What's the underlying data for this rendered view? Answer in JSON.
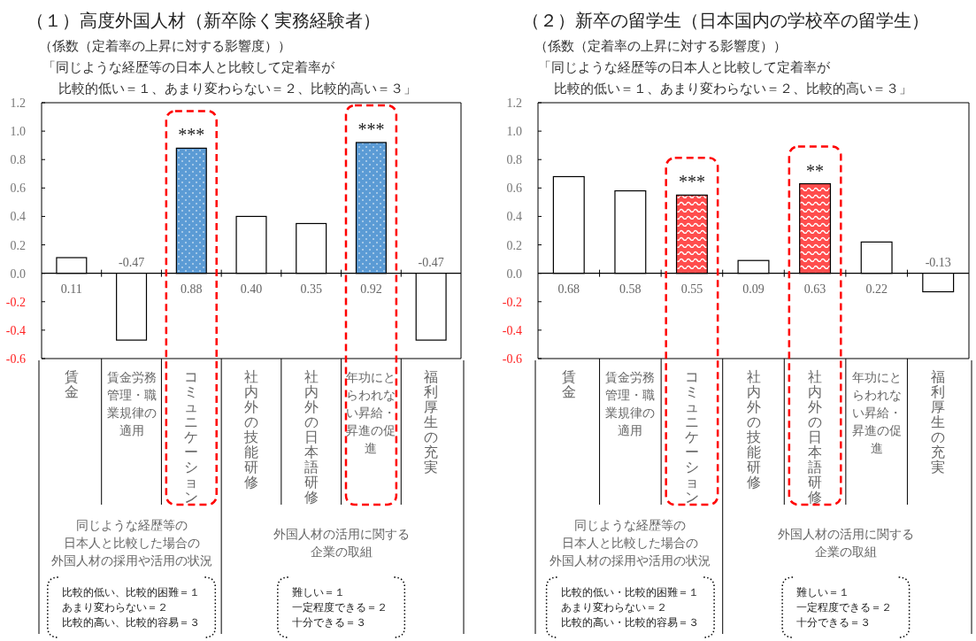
{
  "chart_data": [
    {
      "type": "bar",
      "title": "（１）高度外国人材（新卒除く実務経験者）",
      "ylabel": "（係数（定着率の上昇に対する影響度））",
      "subtitle": "「同じような経歴等の日本人と比較して定着率が",
      "categories": [
        "賃金",
        "賃金労務管理・職業規律の適用",
        "コミュニケーション",
        "社内外の技能研修",
        "社内外の日本語研修",
        "年功にとらわれない昇給・昇進の促進",
        "福利厚生の充実"
      ],
      "values": [
        0.11,
        -0.47,
        0.88,
        0.4,
        0.35,
        0.92,
        -0.47
      ],
      "value_labels": [
        "0.11",
        "-0.47",
        "0.88",
        "0.40",
        "0.35",
        "0.92",
        "-0.47"
      ],
      "colors": [
        "#ffffff",
        "#ffffff",
        "#5b9bd5",
        "#ffffff",
        "#ffffff",
        "#5b9bd5",
        "#ffffff"
      ],
      "ylim": [
        -0.6,
        1.2
      ],
      "yticks": [
        {
          "value": -0.6,
          "label": "-0.6"
        },
        {
          "value": -0.4,
          "label": "-0.4"
        },
        {
          "value": -0.2,
          "label": "-0.2"
        },
        {
          "value": 0,
          "label": "0.0"
        },
        0.2,
        0.4,
        0.6,
        0.8,
        {
          "value": 1.0,
          "label": "1.0"
        },
        1.2
      ],
      "annotations": [
        {
          "text": "***",
          "x": "コミュニケーション",
          "y": 0.88
        },
        {
          "text": "***",
          "x": "年功にとらわれない昇給・昇進の促進",
          "y": 0.92
        },
        "比較的低い＝１、あまり変わらない＝２、比較的高い＝３」",
        "同じような経歴等の",
        "日本人と比較した場合の",
        "外国人材の採用や活用の状況",
        "外国人材の活用に関する",
        "企業の取組",
        "比較的低い、比較的困難＝１",
        "あまり変わらない＝２",
        "比較的高い、比較的容易＝３",
        "難しい＝１",
        "一定程度できる＝２",
        "十分できる＝３"
      ]
    },
    {
      "type": "bar",
      "title": "（２）新卒の留学生（日本国内の学校卒の留学生）",
      "ylabel": "（係数（定着率の上昇に対する影響度））",
      "subtitle": "「同じような経歴等の日本人と比較して定着率が",
      "categories": [
        "賃金",
        "賃金労務管理・職業規律の適用",
        "コミュニケーション",
        "社内外の技能研修",
        "社内外の日本語研修",
        "年功にとらわれない昇給・昇進の促進",
        "福利厚生の充実"
      ],
      "values": [
        0.68,
        0.58,
        0.55,
        0.09,
        0.63,
        0.22,
        -0.13
      ],
      "value_labels": [
        "0.68",
        "0.58",
        "0.55",
        "0.09",
        "0.63",
        "0.22",
        "-0.13"
      ],
      "colors": [
        "#ffffff",
        "#ffffff",
        "#ff4d4d",
        "#ffffff",
        "#ff4d4d",
        "#ffffff",
        "#ffffff"
      ],
      "ylim": [
        -0.6,
        1.2
      ],
      "yticks": [
        {
          "value": -0.6,
          "label": "-0.6"
        },
        {
          "value": -0.4,
          "label": "-0.4"
        },
        {
          "value": -0.2,
          "label": "-0.2"
        },
        {
          "value": 0,
          "label": "0.0"
        },
        0.2,
        0.4,
        0.6,
        0.8,
        {
          "value": 1.0,
          "label": "1.0"
        },
        1.2
      ],
      "annotations": [
        {
          "text": "***",
          "x": "コミュニケーション",
          "y": 0.55
        },
        {
          "text": "**",
          "x": "社内外の日本語研修",
          "y": 0.63
        },
        "比較的低い＝１、あまり変わらない＝２、比較的高い＝３」",
        "同じような経歴等の",
        "日本人と比較した場合の",
        "外国人材の採用や活用の状況",
        "外国人材の活用に関する",
        "企業の取組",
        "比較的低い・比較的困難＝１",
        "あまり変わらない＝２",
        "比較的高い・比較的容易＝３",
        "難しい＝１",
        "一定程度できる＝２",
        "十分できる＝３"
      ]
    }
  ]
}
